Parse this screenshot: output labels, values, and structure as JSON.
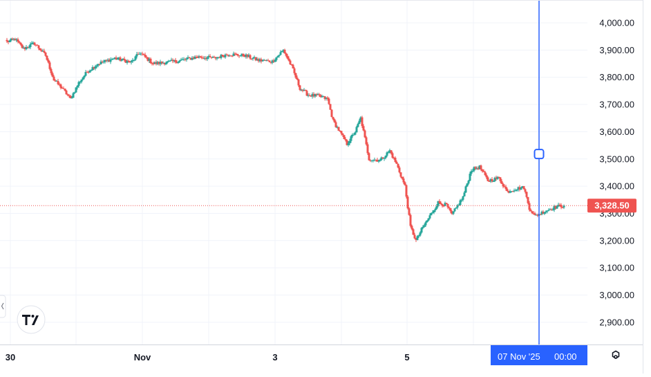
{
  "chart_data": {
    "type": "candlestick",
    "y_axis": {
      "ticks": [
        2900,
        3000,
        3100,
        3200,
        3300,
        3400,
        3500,
        3600,
        3700,
        3800,
        3900,
        4000
      ],
      "tick_labels": [
        "2,900.00",
        "3,000.00",
        "3,100.00",
        "3,200.00",
        "3,300.00",
        "3,400.00",
        "3,500.00",
        "3,600.00",
        "3,700.00",
        "3,800.00",
        "3,900.00",
        "4,000.00"
      ],
      "range": [
        2820,
        4085
      ]
    },
    "x_axis": {
      "labels": [
        "30",
        "Nov",
        "3",
        "5"
      ]
    },
    "last_price": {
      "value": 3328.5,
      "label": "3,328.50"
    },
    "crosshair": {
      "label_date": "07 Nov '25",
      "label_time": "00:00",
      "price": 3518
    },
    "colors": {
      "up": "#26a69a",
      "down": "#ef5350",
      "crosshair": "#2962ff",
      "grid": "#f0f3fa"
    },
    "waypoints": [
      [
        0,
        3930
      ],
      [
        6,
        3940
      ],
      [
        12,
        3905
      ],
      [
        20,
        3925
      ],
      [
        28,
        3880
      ],
      [
        34,
        3790
      ],
      [
        40,
        3760
      ],
      [
        46,
        3720
      ],
      [
        52,
        3780
      ],
      [
        58,
        3820
      ],
      [
        66,
        3850
      ],
      [
        78,
        3870
      ],
      [
        90,
        3855
      ],
      [
        96,
        3890
      ],
      [
        106,
        3850
      ],
      [
        124,
        3860
      ],
      [
        138,
        3875
      ],
      [
        150,
        3870
      ],
      [
        160,
        3885
      ],
      [
        172,
        3880
      ],
      [
        182,
        3862
      ],
      [
        192,
        3858
      ],
      [
        200,
        3900
      ],
      [
        206,
        3840
      ],
      [
        212,
        3760
      ],
      [
        218,
        3735
      ],
      [
        226,
        3730
      ],
      [
        232,
        3720
      ],
      [
        236,
        3640
      ],
      [
        242,
        3590
      ],
      [
        246,
        3555
      ],
      [
        252,
        3600
      ],
      [
        256,
        3650
      ],
      [
        262,
        3500
      ],
      [
        270,
        3495
      ],
      [
        277,
        3530
      ],
      [
        282,
        3480
      ],
      [
        288,
        3400
      ],
      [
        292,
        3250
      ],
      [
        296,
        3200
      ],
      [
        300,
        3240
      ],
      [
        306,
        3290
      ],
      [
        312,
        3340
      ],
      [
        318,
        3330
      ],
      [
        322,
        3295
      ],
      [
        330,
        3360
      ],
      [
        336,
        3460
      ],
      [
        342,
        3470
      ],
      [
        348,
        3420
      ],
      [
        356,
        3430
      ],
      [
        362,
        3380
      ],
      [
        368,
        3390
      ],
      [
        374,
        3395
      ],
      [
        378,
        3320
      ],
      [
        382,
        3290
      ],
      [
        390,
        3310
      ],
      [
        398,
        3325
      ],
      [
        403,
        3328.5
      ]
    ],
    "total_bars": 404
  }
}
